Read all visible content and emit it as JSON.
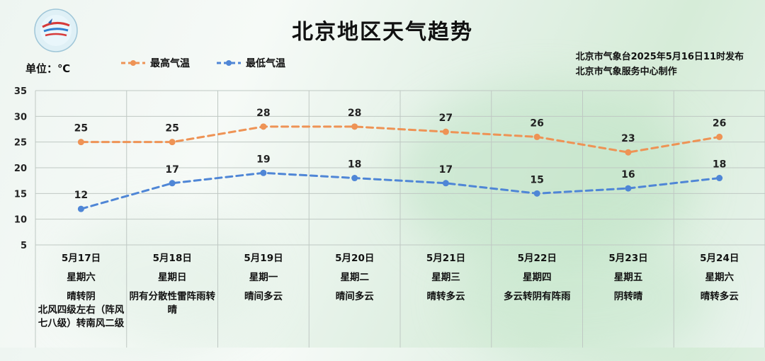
{
  "header": {
    "title": "北京地区天气趋势",
    "unit_label": "单位：℃",
    "publish_line1": "北京市气象台2025年5月16日11时发布",
    "publish_line2": "北京市气象服务中心制作"
  },
  "colors": {
    "high": "#ee9355",
    "low": "#4f86d6",
    "grid": "#bfc8c3"
  },
  "chart_data": {
    "type": "line",
    "ylim": [
      5,
      35
    ],
    "yticks": [
      5,
      10,
      15,
      20,
      25,
      30,
      35
    ],
    "categories": [
      "5月17日",
      "5月18日",
      "5月19日",
      "5月20日",
      "5月21日",
      "5月22日",
      "5月23日",
      "5月24日"
    ],
    "weekdays": [
      "星期六",
      "星期日",
      "星期一",
      "星期二",
      "星期三",
      "星期四",
      "星期五",
      "星期六"
    ],
    "weather": [
      "晴转阴\n北风四级左右（阵风七八级）转南风二级",
      "阴有分散性雷阵雨转晴",
      "晴间多云",
      "晴间多云",
      "晴转多云",
      "多云转阴有阵雨",
      "阴转晴",
      "晴转多云"
    ],
    "series": [
      {
        "name": "最高气温",
        "values": [
          25,
          25,
          28,
          28,
          27,
          26,
          23,
          26
        ]
      },
      {
        "name": "最低气温",
        "values": [
          12,
          17,
          19,
          18,
          17,
          15,
          16,
          18
        ]
      }
    ],
    "grid": true,
    "legend": "top-left"
  }
}
